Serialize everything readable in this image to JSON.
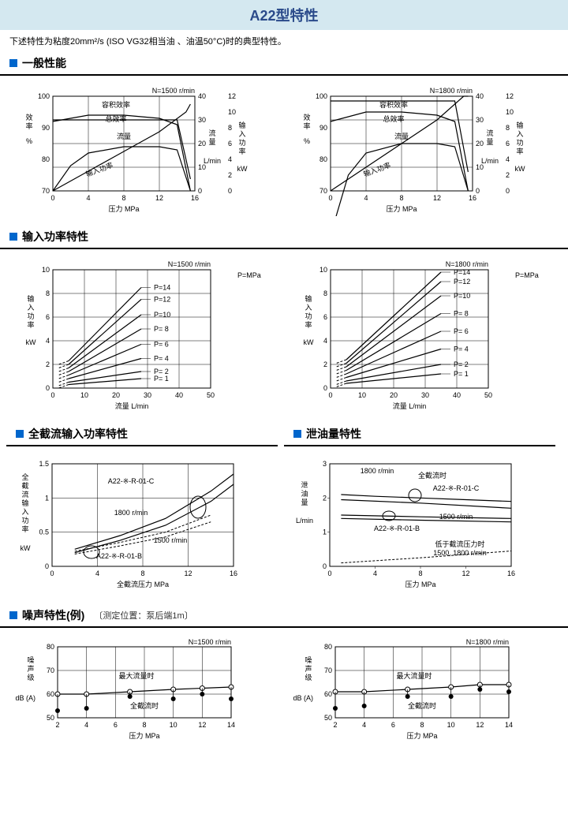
{
  "title": "A22型特性",
  "subtitle": "下述特性为粘度20mm²/s (ISO VG32相当油 、油温50°C)时的典型特性。",
  "sections": {
    "general": "一般性能",
    "input": "输入功率特性",
    "fullcut": "全截流输入功率特性",
    "drain": "泄油量特性",
    "noise": "噪声特性(例)",
    "noise_note": "〔测定位置：泵后端1m〕"
  },
  "labels": {
    "efficiency": "效率",
    "pct": "%",
    "flow": "流量",
    "flow_unit": "L/min",
    "input_power": "输入功率",
    "kw": "kW",
    "pressure": "压力",
    "mpa": "MPa",
    "fullcut_pressure": "全截流压力",
    "drain": "泄油量",
    "noise": "噪声级",
    "dba": "dB (A)",
    "vol_eff": "容积效率",
    "total_eff": "总效率",
    "max_flow": "最大流量时",
    "full_cut": "全截流时",
    "below_cut": "低于截流压力时",
    "rpm_both": "1500, 1800 r/min"
  },
  "general_charts": [
    {
      "rpm": "N=1500 r/min",
      "eff_y": [
        70,
        80,
        90,
        100
      ],
      "eff_y_vals": [
        "70",
        "80",
        "90",
        "100"
      ],
      "right1": [
        0,
        10,
        20,
        30,
        40
      ],
      "right2": [
        0,
        2,
        4,
        6,
        8,
        10,
        12
      ],
      "x": [
        0,
        4,
        8,
        12,
        16
      ],
      "vol_eff": [
        [
          0,
          92
        ],
        [
          4,
          94
        ],
        [
          8,
          94
        ],
        [
          12,
          93
        ],
        [
          14,
          91
        ],
        [
          15.5,
          70
        ]
      ],
      "tot_eff": [
        [
          0,
          70
        ],
        [
          2,
          78
        ],
        [
          4,
          82
        ],
        [
          8,
          84
        ],
        [
          12,
          84
        ],
        [
          14,
          83
        ],
        [
          15.5,
          70
        ]
      ],
      "flow": [
        [
          0,
          30
        ],
        [
          4,
          30
        ],
        [
          8,
          30
        ],
        [
          12,
          30
        ],
        [
          14,
          30
        ],
        [
          15.5,
          5
        ]
      ],
      "power": [
        [
          0,
          0
        ],
        [
          4,
          2.5
        ],
        [
          8,
          5
        ],
        [
          12,
          7.5
        ],
        [
          15,
          10
        ],
        [
          15.5,
          11
        ]
      ]
    },
    {
      "rpm": "N=1800 r/min",
      "eff_y": [
        70,
        80,
        90,
        100
      ],
      "right1": [
        0,
        10,
        20,
        30,
        40
      ],
      "right2": [
        0,
        2,
        4,
        6,
        8,
        10,
        12
      ],
      "x": [
        0,
        4,
        8,
        12,
        16
      ],
      "vol_eff": [
        [
          0,
          92
        ],
        [
          4,
          95
        ],
        [
          8,
          95
        ],
        [
          12,
          94
        ],
        [
          14,
          92
        ],
        [
          15.5,
          70
        ]
      ],
      "tot_eff": [
        [
          0,
          56
        ],
        [
          2,
          75
        ],
        [
          4,
          82
        ],
        [
          8,
          85
        ],
        [
          12,
          85
        ],
        [
          14,
          84
        ],
        [
          15.5,
          70
        ]
      ],
      "flow": [
        [
          0,
          38
        ],
        [
          4,
          38
        ],
        [
          8,
          38
        ],
        [
          12,
          38
        ],
        [
          14,
          38
        ],
        [
          15.5,
          8
        ]
      ],
      "power": [
        [
          0,
          0
        ],
        [
          4,
          3
        ],
        [
          8,
          6
        ],
        [
          12,
          9
        ],
        [
          15,
          12
        ],
        [
          15.5,
          12
        ]
      ]
    }
  ],
  "input_charts": [
    {
      "rpm": "N=1500 r/min",
      "x": [
        0,
        10,
        20,
        30,
        40,
        50
      ],
      "y": [
        0,
        2,
        4,
        6,
        8,
        10
      ],
      "p_unit": "P=MPa",
      "lines": [
        {
          "p": "P= 1",
          "pts": [
            [
              5,
              0.3
            ],
            [
              28,
              0.8
            ]
          ]
        },
        {
          "p": "P= 2",
          "pts": [
            [
              5,
              0.5
            ],
            [
              28,
              1.4
            ]
          ]
        },
        {
          "p": "P= 4",
          "pts": [
            [
              5,
              0.8
            ],
            [
              28,
              2.5
            ]
          ]
        },
        {
          "p": "P= 6",
          "pts": [
            [
              5,
              1.1
            ],
            [
              28,
              3.7
            ]
          ]
        },
        {
          "p": "P= 8",
          "pts": [
            [
              5,
              1.4
            ],
            [
              28,
              5
            ]
          ]
        },
        {
          "p": "P=10",
          "pts": [
            [
              5,
              1.7
            ],
            [
              28,
              6.2
            ]
          ]
        },
        {
          "p": "P=12",
          "pts": [
            [
              5,
              2
            ],
            [
              28,
              7.5
            ]
          ]
        },
        {
          "p": "P=14",
          "pts": [
            [
              5,
              2.3
            ],
            [
              28,
              8.5
            ]
          ]
        }
      ]
    },
    {
      "rpm": "N=1800 r/min",
      "x": [
        0,
        10,
        20,
        30,
        40,
        50
      ],
      "y": [
        0,
        2,
        4,
        6,
        8,
        10
      ],
      "lines": [
        {
          "p": "P= 1",
          "pts": [
            [
              5,
              0.4
            ],
            [
              35,
              1.2
            ]
          ]
        },
        {
          "p": "P= 2",
          "pts": [
            [
              5,
              0.6
            ],
            [
              35,
              2
            ]
          ]
        },
        {
          "p": "P= 4",
          "pts": [
            [
              5,
              0.9
            ],
            [
              35,
              3.3
            ]
          ]
        },
        {
          "p": "P= 6",
          "pts": [
            [
              5,
              1.2
            ],
            [
              35,
              4.8
            ]
          ]
        },
        {
          "p": "P= 8",
          "pts": [
            [
              5,
              1.5
            ],
            [
              35,
              6.3
            ]
          ]
        },
        {
          "p": "P=10",
          "pts": [
            [
              5,
              1.8
            ],
            [
              35,
              7.8
            ]
          ]
        },
        {
          "p": "P=12",
          "pts": [
            [
              5,
              2.1
            ],
            [
              35,
              9
            ]
          ]
        },
        {
          "p": "P=14",
          "pts": [
            [
              5,
              2.4
            ],
            [
              35,
              9.8
            ]
          ]
        }
      ]
    }
  ],
  "fullcut_chart": {
    "x": [
      0,
      4,
      8,
      12,
      16
    ],
    "y": [
      0,
      0.5,
      1.0,
      1.5
    ],
    "labels": {
      "c": "A22-※-R-01-C",
      "b": "A22-※-R-01-B",
      "r1500": "1500 r/min",
      "r1800": "1800 r/min"
    },
    "c1800": [
      [
        2,
        0.25
      ],
      [
        6,
        0.45
      ],
      [
        10,
        0.7
      ],
      [
        14,
        1.1
      ],
      [
        16,
        1.35
      ]
    ],
    "c1500": [
      [
        2,
        0.2
      ],
      [
        6,
        0.38
      ],
      [
        10,
        0.6
      ],
      [
        14,
        0.95
      ],
      [
        16,
        1.2
      ]
    ],
    "b1800": [
      [
        2,
        0.22
      ],
      [
        6,
        0.35
      ],
      [
        10,
        0.5
      ],
      [
        14,
        0.75
      ]
    ],
    "b1500": [
      [
        2,
        0.18
      ],
      [
        6,
        0.3
      ],
      [
        10,
        0.43
      ],
      [
        14,
        0.65
      ]
    ]
  },
  "drain_chart": {
    "x": [
      0,
      4,
      8,
      12,
      16
    ],
    "y": [
      0,
      1,
      2,
      3
    ],
    "labels": {
      "c": "A22-※-R-01-C",
      "b": "A22-※-R-01-B",
      "r1500": "1500 r/min",
      "r1800": "1800 r/min"
    },
    "c1800": [
      [
        1,
        2.1
      ],
      [
        4,
        2.05
      ],
      [
        8,
        2
      ],
      [
        12,
        1.95
      ],
      [
        16,
        1.9
      ]
    ],
    "b1800": [
      [
        1,
        1.95
      ],
      [
        8,
        1.85
      ],
      [
        16,
        1.7
      ]
    ],
    "c1500": [
      [
        1,
        1.5
      ],
      [
        8,
        1.45
      ],
      [
        16,
        1.4
      ]
    ],
    "b1500": [
      [
        1,
        1.4
      ],
      [
        8,
        1.35
      ],
      [
        16,
        1.3
      ]
    ],
    "below": [
      [
        1,
        0.1
      ],
      [
        8,
        0.25
      ],
      [
        16,
        0.45
      ]
    ]
  },
  "noise_charts": [
    {
      "rpm": "N=1500 r/min",
      "x": [
        2,
        4,
        6,
        8,
        10,
        12,
        14
      ],
      "y": [
        50,
        60,
        70,
        80
      ],
      "max": [
        [
          2,
          60
        ],
        [
          4,
          60
        ],
        [
          7,
          61
        ],
        [
          10,
          62
        ],
        [
          12,
          62.5
        ],
        [
          14,
          63
        ]
      ],
      "cut": [
        [
          2,
          53
        ],
        [
          4,
          54
        ],
        [
          7,
          59
        ],
        [
          10,
          58
        ],
        [
          12,
          60
        ],
        [
          14,
          58
        ]
      ]
    },
    {
      "rpm": "N=1800 r/min",
      "x": [
        2,
        4,
        6,
        8,
        10,
        12,
        14
      ],
      "y": [
        50,
        60,
        70,
        80
      ],
      "max": [
        [
          2,
          61
        ],
        [
          4,
          61
        ],
        [
          7,
          62
        ],
        [
          10,
          63
        ],
        [
          12,
          64
        ],
        [
          14,
          64
        ]
      ],
      "cut": [
        [
          2,
          54
        ],
        [
          4,
          55
        ],
        [
          7,
          59
        ],
        [
          10,
          59
        ],
        [
          12,
          62
        ],
        [
          14,
          61
        ]
      ]
    }
  ],
  "colors": {
    "bg": "#ffffff",
    "accent": "#0066cc",
    "header_bg": "#d4e8f0",
    "title": "#2a4a8a",
    "line": "#000000"
  }
}
